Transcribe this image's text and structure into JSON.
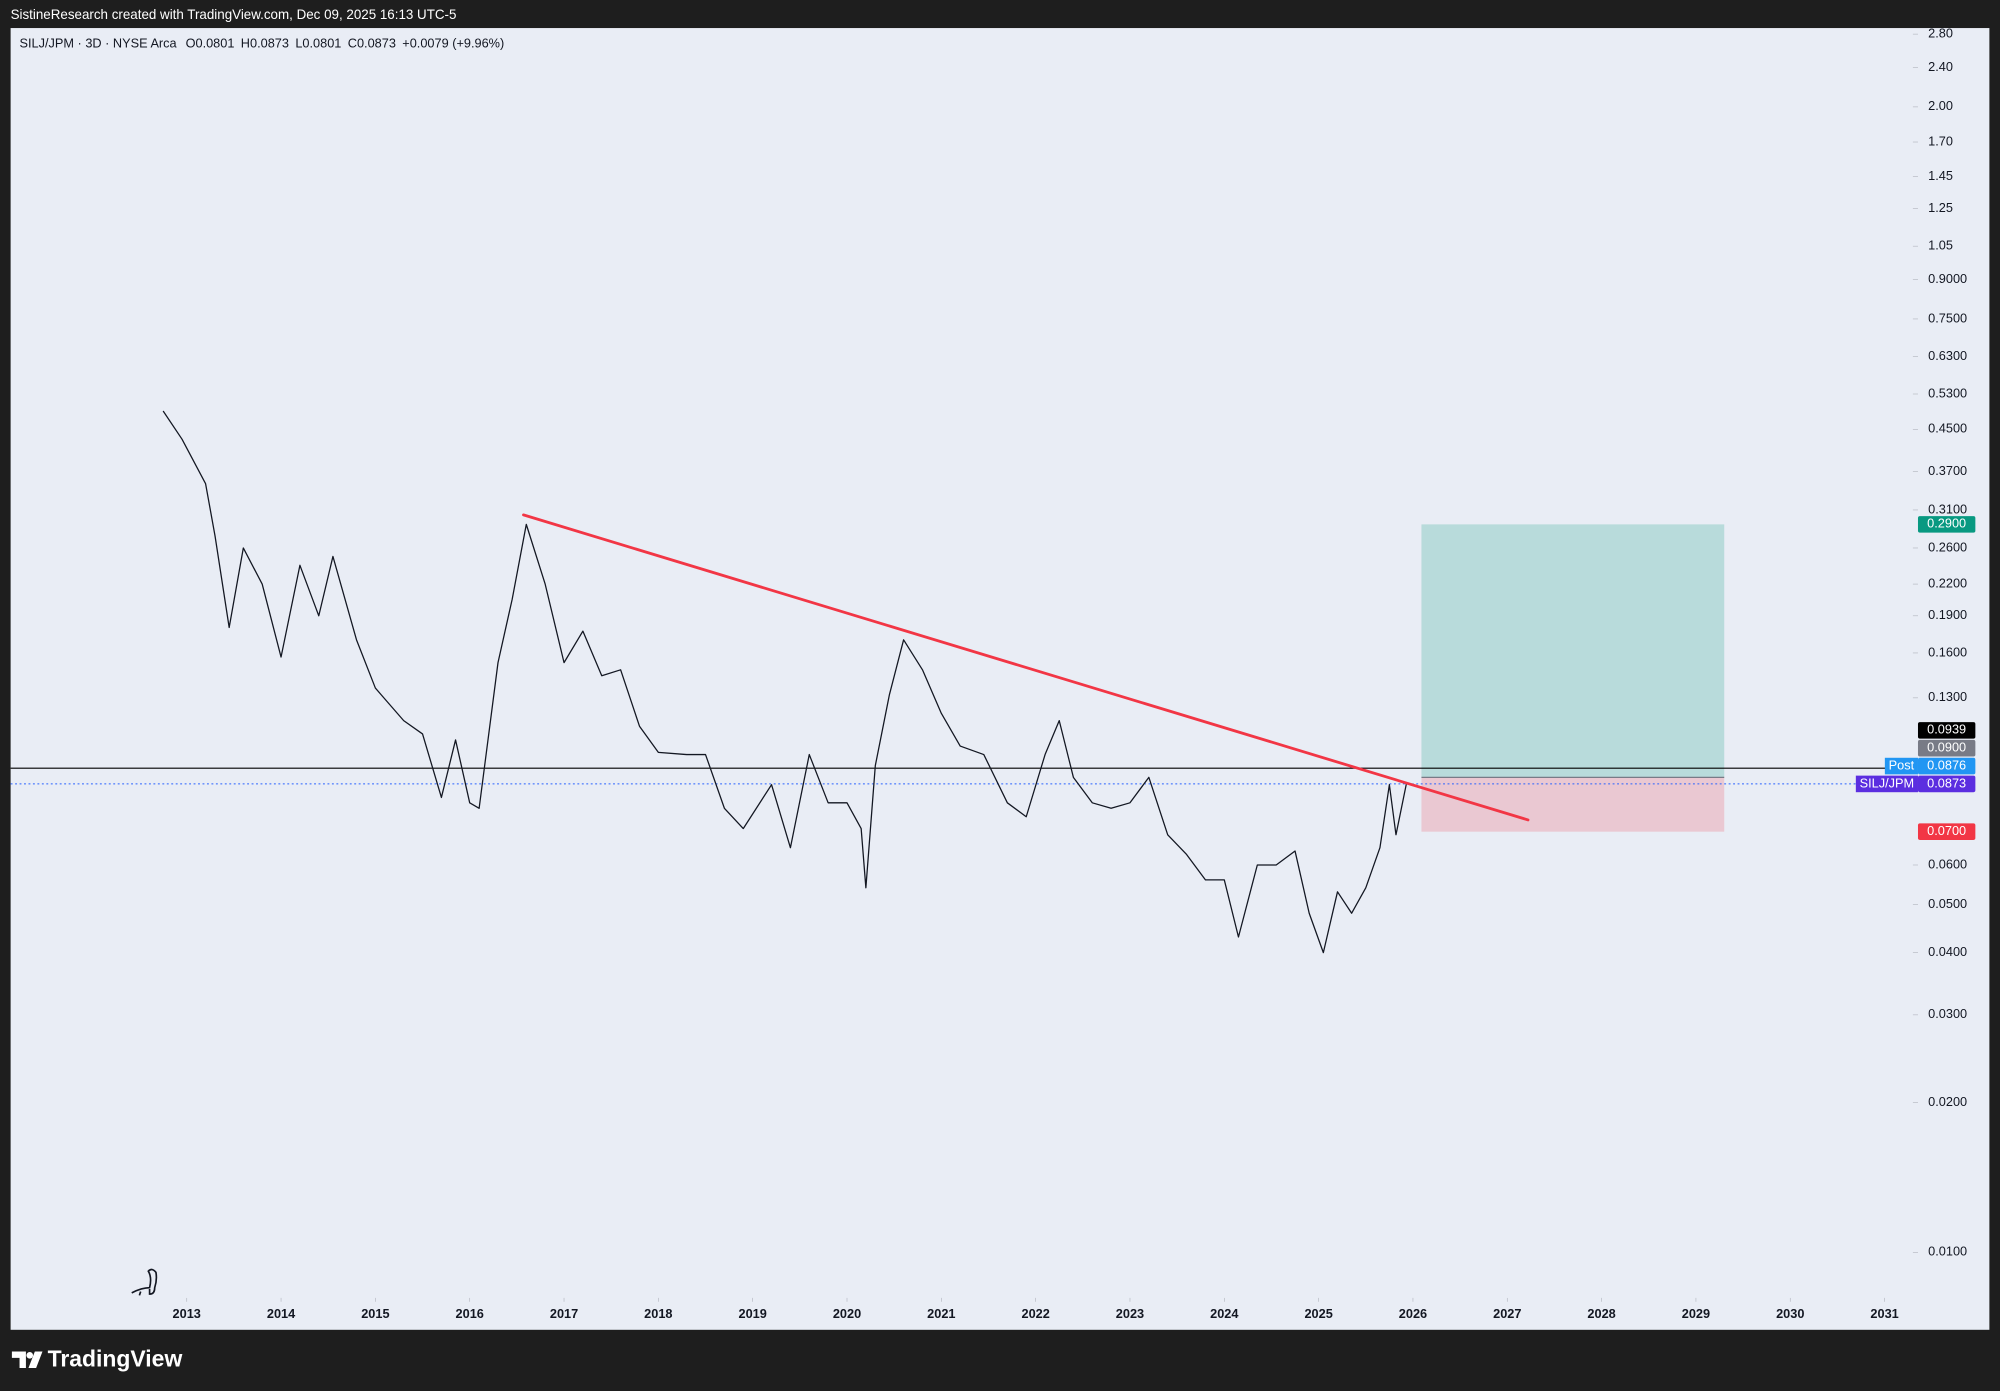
{
  "header": {
    "credit": "SistineResearch created with TradingView.com, Dec 09, 2025 16:13 UTC-5"
  },
  "footer": {
    "brand": "TradingView"
  },
  "chart_data": {
    "type": "line",
    "symbol": "SILJ/JPM · 3D · NYSE Arca",
    "ohlc": [
      {
        "label": "O",
        "value": "0.0801"
      },
      {
        "label": "H",
        "value": "0.0873"
      },
      {
        "label": "L",
        "value": "0.0801"
      },
      {
        "label": "C",
        "value": "0.0873"
      }
    ],
    "change": "+0.0079 (+9.96%)",
    "log_scale": true,
    "x": [
      2012.75,
      2012.95,
      2013.2,
      2013.3,
      2013.45,
      2013.6,
      2013.8,
      2014.0,
      2014.2,
      2014.4,
      2014.55,
      2014.8,
      2015.0,
      2015.3,
      2015.5,
      2015.7,
      2015.85,
      2016.0,
      2016.1,
      2016.3,
      2016.45,
      2016.6,
      2016.8,
      2017.0,
      2017.2,
      2017.4,
      2017.6,
      2017.8,
      2018.0,
      2018.3,
      2018.5,
      2018.7,
      2018.9,
      2019.2,
      2019.4,
      2019.6,
      2019.8,
      2020.0,
      2020.15,
      2020.2,
      2020.3,
      2020.45,
      2020.6,
      2020.8,
      2021.0,
      2021.2,
      2021.45,
      2021.7,
      2021.9,
      2022.1,
      2022.25,
      2022.4,
      2022.6,
      2022.8,
      2023.0,
      2023.2,
      2023.4,
      2023.6,
      2023.8,
      2024.0,
      2024.15,
      2024.35,
      2024.55,
      2024.75,
      2024.9,
      2025.05,
      2025.2,
      2025.35,
      2025.5,
      2025.65,
      2025.75,
      2025.82,
      2025.93
    ],
    "series": [
      {
        "name": "SILJ/JPM",
        "color": "#131722",
        "values": [
          0.49,
          0.43,
          0.35,
          0.275,
          0.18,
          0.26,
          0.22,
          0.157,
          0.24,
          0.19,
          0.25,
          0.17,
          0.136,
          0.117,
          0.11,
          0.082,
          0.107,
          0.08,
          0.078,
          0.153,
          0.205,
          0.29,
          0.22,
          0.153,
          0.177,
          0.144,
          0.148,
          0.114,
          0.101,
          0.1,
          0.1,
          0.078,
          0.071,
          0.087,
          0.065,
          0.1,
          0.08,
          0.08,
          0.071,
          0.054,
          0.095,
          0.132,
          0.17,
          0.148,
          0.121,
          0.104,
          0.1,
          0.08,
          0.075,
          0.1,
          0.117,
          0.09,
          0.08,
          0.078,
          0.08,
          0.09,
          0.069,
          0.063,
          0.056,
          0.056,
          0.043,
          0.06,
          0.06,
          0.064,
          0.048,
          0.04,
          0.053,
          0.048,
          0.054,
          0.065,
          0.087,
          0.069,
          0.0873
        ]
      }
    ],
    "xlim": [
      2011.16,
      2031.3
    ],
    "xticks": [
      2013,
      2014,
      2015,
      2016,
      2017,
      2018,
      2019,
      2020,
      2021,
      2022,
      2023,
      2024,
      2025,
      2026,
      2027,
      2028,
      2029,
      2030,
      2031
    ],
    "ylim": [
      0.0081,
      2.88
    ],
    "yticks": [
      {
        "value": 2.8,
        "label": "2.80"
      },
      {
        "value": 2.4,
        "label": "2.40"
      },
      {
        "value": 2,
        "label": "2.00"
      },
      {
        "value": 1.7,
        "label": "1.70"
      },
      1.45,
      1.25,
      1.05,
      {
        "value": 0.9,
        "label": "0.9000"
      },
      {
        "value": 0.75,
        "label": "0.7500"
      },
      {
        "value": 0.63,
        "label": "0.6300"
      },
      {
        "value": 0.53,
        "label": "0.5300"
      },
      {
        "value": 0.45,
        "label": "0.4500"
      },
      {
        "value": 0.37,
        "label": "0.3700"
      },
      {
        "value": 0.31,
        "label": "0.3100"
      },
      {
        "value": 0.26,
        "label": "0.2600"
      },
      {
        "value": 0.22,
        "label": "0.2200"
      },
      {
        "value": 0.19,
        "label": "0.1900"
      },
      {
        "value": 0.16,
        "label": "0.1600"
      },
      {
        "value": 0.13,
        "label": "0.1300"
      },
      {
        "value": 0.06,
        "label": "0.0600"
      },
      {
        "value": 0.05,
        "label": "0.0500"
      },
      {
        "value": 0.04,
        "label": "0.0400"
      },
      {
        "value": 0.03,
        "label": "0.0300"
      },
      {
        "value": 0.02,
        "label": "0.0200"
      },
      {
        "value": 0.01,
        "label": "0.0100"
      }
    ],
    "trendline": {
      "color": "#f23645",
      "x": [
        2016.57,
        2027.22
      ],
      "values": [
        0.303,
        0.0739
      ]
    },
    "position": {
      "x": [
        2026.09,
        2029.3
      ],
      "target": 0.29,
      "target_label": "0.2900",
      "entry": 0.09,
      "entry_label": "0.0900",
      "stop": 0.07,
      "stop_label": "0.0700",
      "target_color": "#089981",
      "stop_color": "#f23645"
    },
    "price_lines": [
      {
        "value": 0.0939,
        "label": "0.0939",
        "color": "#000000",
        "line": "solid"
      },
      {
        "value": 0.0876,
        "label": "0.0876",
        "name": "Post",
        "color": "#2196f3"
      },
      {
        "value": 0.0873,
        "label": "0.0873",
        "name": "SILJ/JPM",
        "color": "#5b2ee0",
        "line": "dotted",
        "line_color": "#2962ff"
      }
    ]
  }
}
